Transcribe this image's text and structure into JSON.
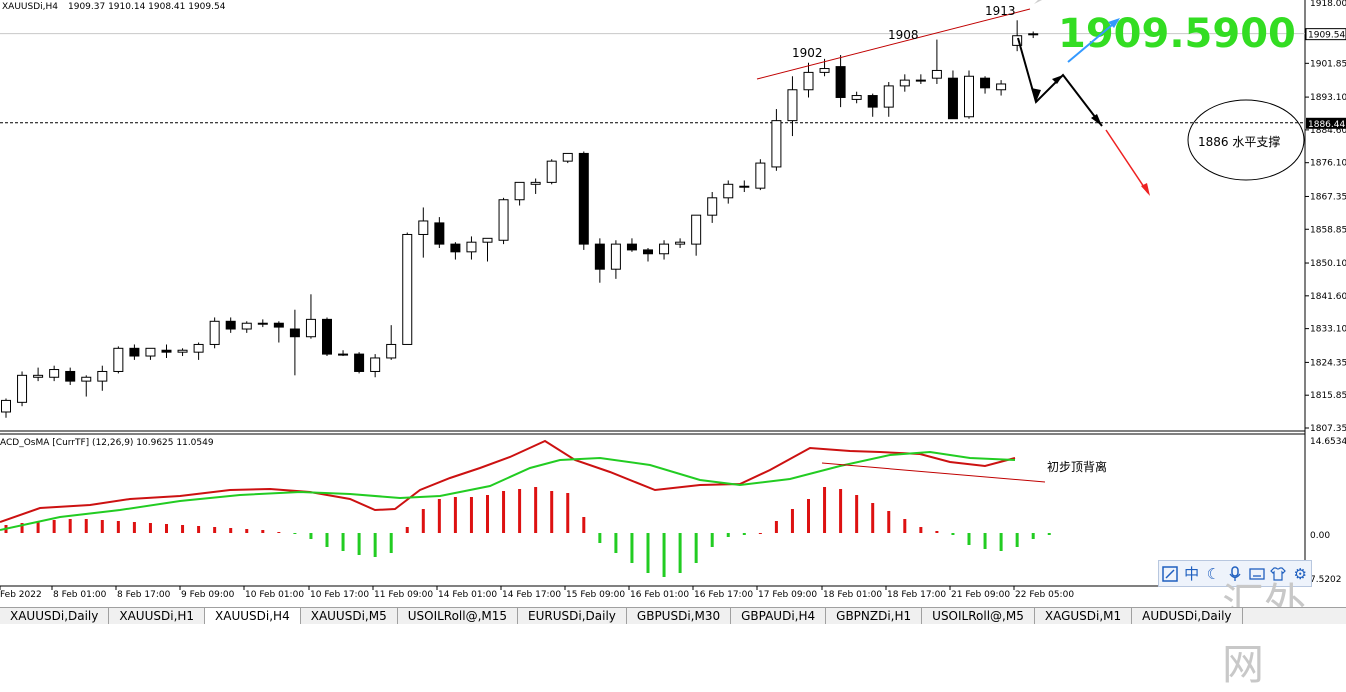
{
  "header": {
    "symbol": "XAUUSDi,H4",
    "ohlc": "1909.37 1910.14 1908.41 1909.54"
  },
  "price_big": "1909.5900",
  "current_price_label": "1909.54",
  "hline_price_label": "1886.44",
  "top_partial_label": "1918.00",
  "bottom_partial_label": "7.5202",
  "peak_labels": [
    "1902",
    "1908",
    "1913"
  ],
  "support_note": "1886 水平支撑",
  "divergence_note": "初步顶背离",
  "macd_label": "ACD_OsMA [CurrTF] (12,26,9) 10.9625 11.0549",
  "macd_axis": [
    "14.6534",
    "0.00"
  ],
  "colors": {
    "price_big": "#33dd22",
    "trend_line": "#c00000",
    "macd_line": "#cc1111",
    "signal_line": "#22cc22",
    "hist_pos": "#dd1111",
    "hist_neg": "#22cc22",
    "arrow_up": "#3399ff",
    "arrow_down": "#ee2222"
  },
  "time_labels": [
    "Feb 2022",
    "8 Feb 01:00",
    "8 Feb 17:00",
    "9 Feb 09:00",
    "10 Feb 01:00",
    "10 Feb 17:00",
    "11 Feb 09:00",
    "14 Feb 01:00",
    "14 Feb 17:00",
    "15 Feb 09:00",
    "16 Feb 01:00",
    "16 Feb 17:00",
    "17 Feb 09:00",
    "18 Feb 01:00",
    "18 Feb 17:00",
    "21 Feb 09:00",
    "22 Feb 05:00"
  ],
  "tabs": [
    "XAUUSDi,Daily",
    "XAUUSDi,H1",
    "XAUUSDi,H4",
    "XAUUSDi,M5",
    "USOILRoll@,M15",
    "EURUSDi,Daily",
    "GBPUSDi,M30",
    "GBPAUDi,H4",
    "GBPNZDi,H1",
    "USOILRoll@,M5",
    "XAGUSDi,M1",
    "AUDUSDi,Daily"
  ],
  "active_tab": 2,
  "toolbar": [
    "chart-icon",
    "中",
    "moon-icon",
    "mic-icon",
    "keyboard-icon",
    "shirt-icon",
    "gear-icon"
  ],
  "watermark": "汇外网",
  "chart_data": {
    "type": "candlestick",
    "symbol": "XAUUSDi",
    "timeframe": "H4",
    "y_ticks": [
      "1901.85",
      "1893.10",
      "1884.60",
      "1876.10",
      "1867.35",
      "1858.85",
      "1850.10",
      "1841.60",
      "1833.10",
      "1824.35",
      "1815.85",
      "1807.35"
    ],
    "ylim": [
      1807.35,
      1918
    ],
    "candles": [
      [
        1811.5,
        1815.0,
        1810.0,
        1814.5
      ],
      [
        1814.0,
        1822.0,
        1813.0,
        1821.0
      ],
      [
        1820.5,
        1823.0,
        1819.5,
        1821.0
      ],
      [
        1820.5,
        1823.5,
        1819.5,
        1822.5
      ],
      [
        1822.0,
        1823.0,
        1818.5,
        1819.5
      ],
      [
        1819.5,
        1821.0,
        1815.5,
        1820.5
      ],
      [
        1819.5,
        1823.5,
        1817.0,
        1822.0
      ],
      [
        1822.0,
        1828.5,
        1821.5,
        1828.0
      ],
      [
        1828.0,
        1829.0,
        1825.0,
        1826.0
      ],
      [
        1826.0,
        1828.0,
        1825.0,
        1828.0
      ],
      [
        1827.5,
        1829.0,
        1825.5,
        1827.0
      ],
      [
        1827.0,
        1828.0,
        1826.0,
        1827.5
      ],
      [
        1827.0,
        1829.5,
        1825.0,
        1829.0
      ],
      [
        1829.0,
        1836.0,
        1828.0,
        1835.0
      ],
      [
        1835.0,
        1836.0,
        1832.0,
        1833.0
      ],
      [
        1833.0,
        1835.0,
        1832.0,
        1834.5
      ],
      [
        1834.5,
        1835.5,
        1833.5,
        1834.5
      ],
      [
        1834.5,
        1835.0,
        1829.5,
        1833.5
      ],
      [
        1833.0,
        1838.0,
        1821.0,
        1831.0
      ],
      [
        1831.0,
        1842.0,
        1830.5,
        1835.5
      ],
      [
        1835.5,
        1836.0,
        1826.0,
        1826.5
      ],
      [
        1826.5,
        1827.5,
        1826.0,
        1826.5
      ],
      [
        1826.5,
        1827.0,
        1821.5,
        1822.0
      ],
      [
        1822.0,
        1826.5,
        1820.5,
        1825.5
      ],
      [
        1825.5,
        1834.0,
        1825.0,
        1829.0
      ],
      [
        1829.0,
        1858.0,
        1829.0,
        1857.5
      ],
      [
        1857.5,
        1864.5,
        1851.5,
        1861.0
      ],
      [
        1860.5,
        1862.0,
        1854.0,
        1855.0
      ],
      [
        1855.0,
        1855.5,
        1851.0,
        1853.0
      ],
      [
        1853.0,
        1857.0,
        1851.0,
        1855.5
      ],
      [
        1855.5,
        1856.5,
        1850.5,
        1856.5
      ],
      [
        1856.0,
        1867.0,
        1855.0,
        1866.5
      ],
      [
        1866.5,
        1871.0,
        1865.0,
        1871.0
      ],
      [
        1870.5,
        1872.0,
        1868.0,
        1871.0
      ],
      [
        1871.0,
        1877.0,
        1870.5,
        1876.5
      ],
      [
        1876.5,
        1878.5,
        1876.0,
        1878.5
      ],
      [
        1878.5,
        1879.0,
        1853.5,
        1855.0
      ],
      [
        1855.0,
        1856.5,
        1845.0,
        1848.5
      ],
      [
        1848.5,
        1856.0,
        1846.0,
        1855.0
      ],
      [
        1855.0,
        1856.5,
        1853.0,
        1853.5
      ],
      [
        1853.5,
        1854.0,
        1850.5,
        1852.5
      ],
      [
        1852.5,
        1856.0,
        1851.0,
        1855.0
      ],
      [
        1855.0,
        1856.5,
        1854.0,
        1855.5
      ],
      [
        1855.0,
        1862.5,
        1852.0,
        1862.5
      ],
      [
        1862.5,
        1868.5,
        1860.5,
        1867.0
      ],
      [
        1867.0,
        1871.5,
        1865.5,
        1870.5
      ],
      [
        1870.0,
        1871.5,
        1868.5,
        1870.0
      ],
      [
        1869.5,
        1877.0,
        1869.0,
        1876.0
      ],
      [
        1875.0,
        1890.0,
        1874.0,
        1887.0
      ],
      [
        1887.0,
        1898.5,
        1883.0,
        1895.0
      ],
      [
        1895.0,
        1902.0,
        1893.0,
        1899.5
      ],
      [
        1899.5,
        1903.0,
        1898.5,
        1900.5
      ],
      [
        1901.0,
        1904.0,
        1890.5,
        1893.0
      ],
      [
        1892.5,
        1894.5,
        1891.5,
        1893.5
      ],
      [
        1893.5,
        1894.0,
        1888.0,
        1890.5
      ],
      [
        1890.5,
        1897.0,
        1888.0,
        1896.0
      ],
      [
        1896.0,
        1899.0,
        1894.5,
        1897.5
      ],
      [
        1897.5,
        1899.0,
        1896.5,
        1897.5
      ],
      [
        1898.0,
        1908.0,
        1896.5,
        1900.0
      ],
      [
        1898.0,
        1900.0,
        1887.5,
        1887.5
      ],
      [
        1888.0,
        1900.0,
        1887.5,
        1898.5
      ],
      [
        1898.0,
        1898.5,
        1894.0,
        1895.5
      ],
      [
        1895.0,
        1897.5,
        1893.5,
        1896.5
      ],
      [
        1906.5,
        1913.0,
        1905.0,
        1909.0
      ],
      [
        1909.4,
        1910.1,
        1908.4,
        1909.5
      ]
    ],
    "support_level": 1886.44,
    "current_price": 1909.54
  }
}
